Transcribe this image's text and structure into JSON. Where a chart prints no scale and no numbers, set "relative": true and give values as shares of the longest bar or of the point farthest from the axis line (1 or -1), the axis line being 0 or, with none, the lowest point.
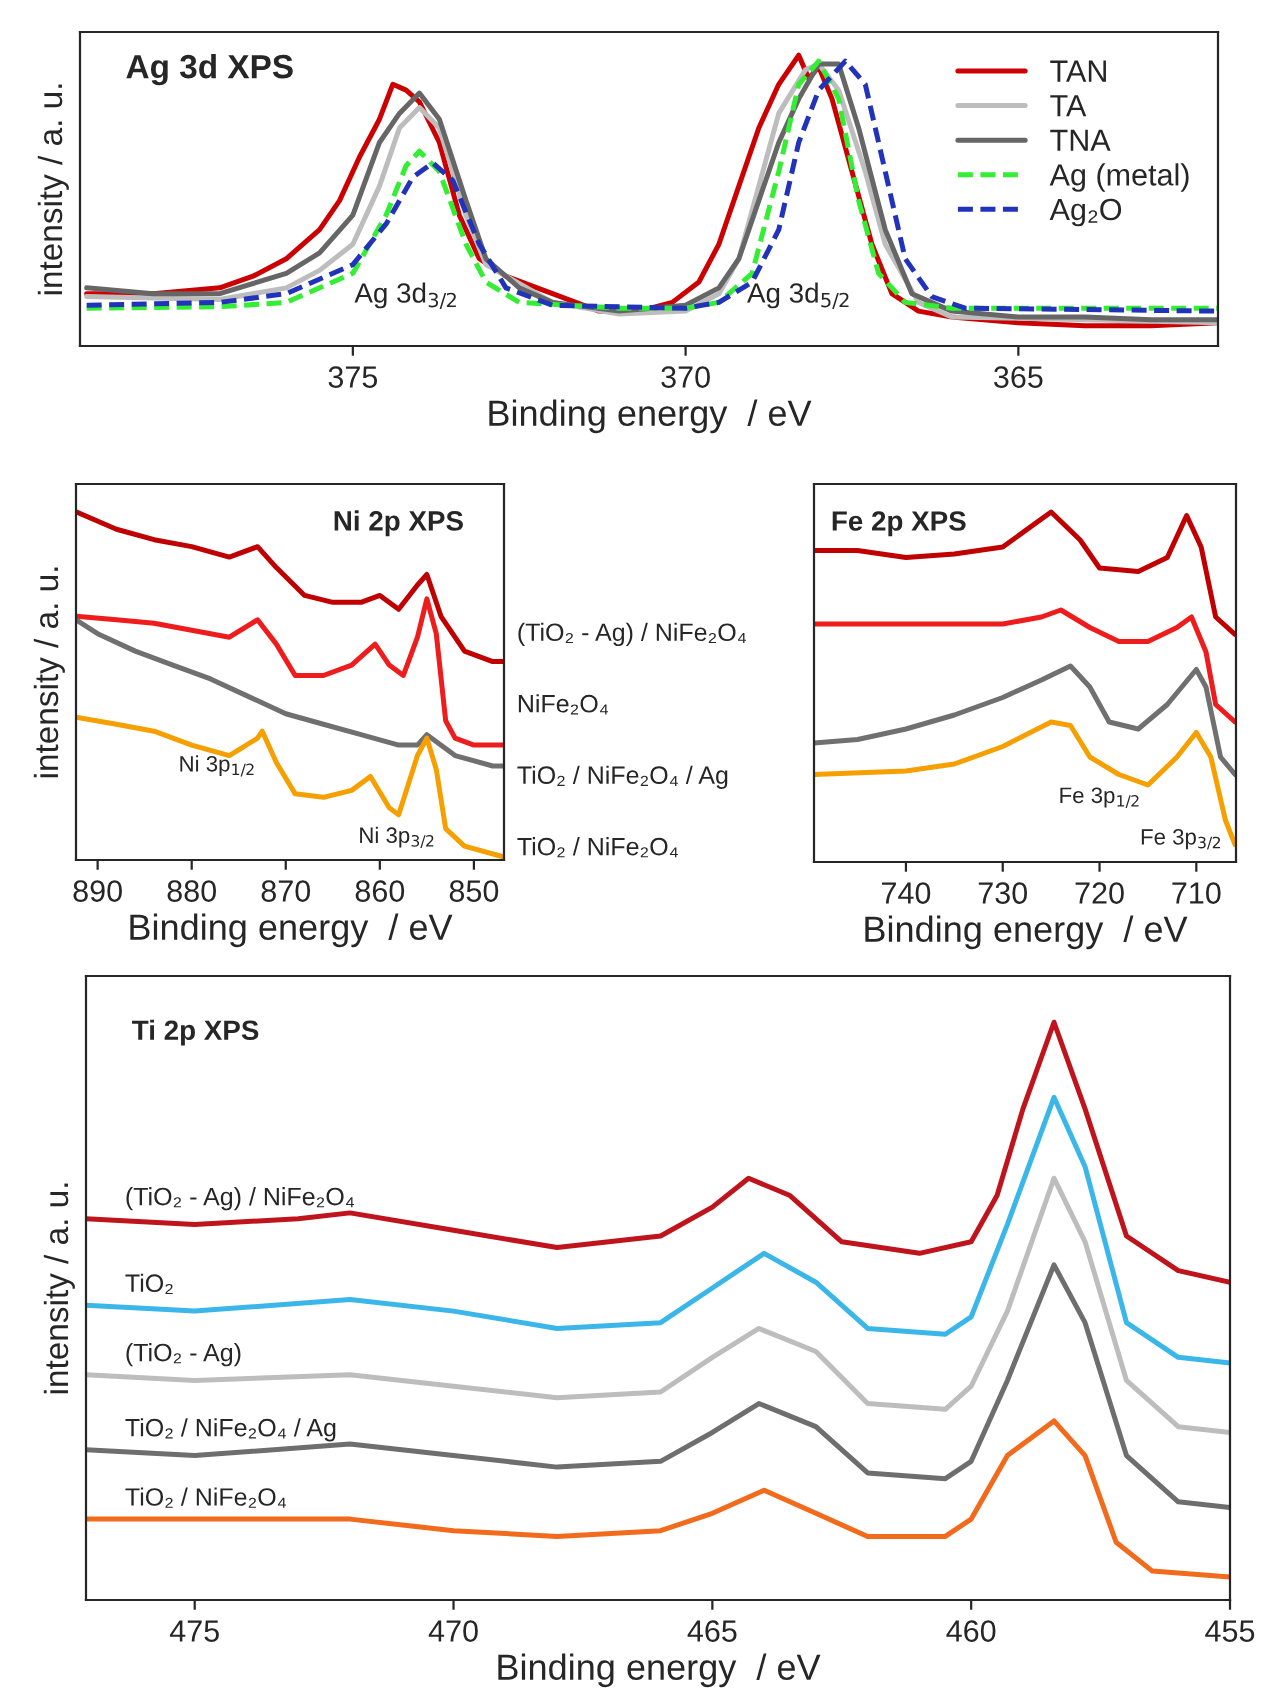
{
  "chart_data": [
    {
      "type": "line",
      "title": "Ag 3d XPS",
      "xlabel": "Binding energy  / eV",
      "ylabel": "intensity / a. u.",
      "relative": true,
      "xlim": [
        379.1,
        362
      ],
      "xticks": [
        375,
        370,
        365
      ],
      "tick_labels": "x",
      "legend": "top right",
      "grid": false,
      "line_style": "solid",
      "annotations": [
        "Ag 3d$_{3/2}$",
        "Ag 3d$_{5/2}$"
      ],
      "series": [
        {
          "name": "TAN",
          "color": "#cc0000",
          "x": [
            379,
            378,
            377,
            376.5,
            376,
            375.5,
            375.2,
            374.9,
            374.6,
            374.4,
            374.2,
            374,
            373.7,
            373.4,
            373.1,
            372.7,
            372,
            371.3,
            370.7,
            370.2,
            369.8,
            369.5,
            369.2,
            368.9,
            368.6,
            368.3,
            368.15,
            368,
            367.8,
            367.5,
            367.2,
            366.9,
            366.5,
            366,
            365,
            364,
            363,
            362
          ],
          "values": [
            0.18,
            0.18,
            0.2,
            0.24,
            0.3,
            0.4,
            0.5,
            0.65,
            0.78,
            0.9,
            0.88,
            0.84,
            0.7,
            0.45,
            0.3,
            0.24,
            0.18,
            0.12,
            0.12,
            0.15,
            0.22,
            0.35,
            0.55,
            0.75,
            0.9,
            1.0,
            0.92,
            0.96,
            0.85,
            0.6,
            0.35,
            0.18,
            0.12,
            0.1,
            0.08,
            0.07,
            0.07,
            0.08
          ]
        },
        {
          "name": "TA",
          "color": "#bdbdbd",
          "x": [
            379,
            377,
            376,
            375.5,
            375,
            374.6,
            374.3,
            374,
            373.7,
            373.3,
            373,
            372,
            371,
            370,
            369.5,
            369.2,
            368.9,
            368.6,
            368.2,
            368,
            367.7,
            367.3,
            367,
            366.5,
            366,
            364,
            362
          ],
          "values": [
            0.17,
            0.16,
            0.2,
            0.26,
            0.35,
            0.55,
            0.75,
            0.82,
            0.75,
            0.45,
            0.28,
            0.15,
            0.11,
            0.12,
            0.18,
            0.3,
            0.55,
            0.8,
            0.95,
            0.97,
            0.88,
            0.6,
            0.35,
            0.15,
            0.1,
            0.09,
            0.08
          ]
        },
        {
          "name": "TNA",
          "color": "#666666",
          "x": [
            379,
            378,
            377,
            376,
            375.5,
            375,
            374.6,
            374.3,
            374,
            373.7,
            373.3,
            373,
            372.5,
            372,
            371,
            370.5,
            370,
            369.5,
            369.2,
            368.9,
            368.6,
            368.3,
            368,
            367.7,
            367.4,
            367,
            366.6,
            366,
            365,
            364,
            363,
            362
          ],
          "values": [
            0.2,
            0.18,
            0.18,
            0.25,
            0.32,
            0.45,
            0.7,
            0.8,
            0.87,
            0.78,
            0.5,
            0.3,
            0.2,
            0.15,
            0.12,
            0.13,
            0.14,
            0.2,
            0.3,
            0.5,
            0.7,
            0.85,
            0.97,
            0.97,
            0.75,
            0.4,
            0.18,
            0.12,
            0.1,
            0.1,
            0.09,
            0.09
          ]
        },
        {
          "name": "Ag (metal)",
          "color": "#33ee33",
          "line_style": "dashed",
          "x": [
            379,
            377,
            376,
            375,
            374.5,
            374.2,
            374,
            373.7,
            373.3,
            373,
            372.5,
            371,
            370,
            369.5,
            369,
            368.6,
            368.3,
            368,
            367.7,
            367.4,
            367.1,
            366.7,
            366,
            362
          ],
          "values": [
            0.13,
            0.135,
            0.15,
            0.25,
            0.45,
            0.62,
            0.67,
            0.6,
            0.35,
            0.22,
            0.15,
            0.13,
            0.13,
            0.15,
            0.25,
            0.6,
            0.9,
            0.98,
            0.85,
            0.5,
            0.25,
            0.15,
            0.13,
            0.13
          ]
        },
        {
          "name": "Ag₂O",
          "color": "#2233bb",
          "line_style": "dashed",
          "x": [
            379,
            377,
            376,
            375,
            374.5,
            374.1,
            373.8,
            373.5,
            373.1,
            372.7,
            372,
            370,
            369.5,
            369,
            368.6,
            368.3,
            368,
            367.6,
            367.3,
            367,
            366.7,
            366.3,
            365.8,
            362
          ],
          "values": [
            0.14,
            0.15,
            0.18,
            0.28,
            0.42,
            0.58,
            0.63,
            0.57,
            0.35,
            0.2,
            0.14,
            0.13,
            0.15,
            0.22,
            0.4,
            0.7,
            0.88,
            0.98,
            0.9,
            0.6,
            0.3,
            0.17,
            0.13,
            0.12
          ]
        }
      ]
    },
    {
      "type": "line",
      "title": "Ni 2p XPS",
      "xlabel": "Binding energy  / eV",
      "ylabel": "intensity / a. u.",
      "relative": true,
      "xlim": [
        892.3,
        846.8
      ],
      "xticks": [
        890,
        880,
        870,
        860,
        850
      ],
      "tick_labels": "x",
      "legend": false,
      "grid": false,
      "line_style": "solid",
      "annotations": [
        "Ni 3p$_{1/2}$",
        "Ni 3p$_{3/2}$"
      ],
      "series": [
        {
          "name": "(TiO₂ - Ag) / NiFe₂O₄",
          "color": "#c00000",
          "x": [
            892.3,
            888,
            884,
            880,
            876,
            873,
            871,
            868,
            865,
            862,
            860,
            858,
            856,
            855,
            853.5,
            851,
            848,
            846.8
          ],
          "values": [
            1.0,
            0.95,
            0.92,
            0.9,
            0.87,
            0.9,
            0.84,
            0.76,
            0.74,
            0.74,
            0.76,
            0.72,
            0.79,
            0.82,
            0.7,
            0.6,
            0.57,
            0.57
          ]
        },
        {
          "name": "NiFe₂O₄",
          "color": "#ee1c1c",
          "x": [
            892.3,
            888,
            884,
            880,
            876,
            873,
            871,
            869,
            866,
            863,
            860.5,
            859,
            857.5,
            856,
            855,
            854,
            853,
            852,
            850,
            846.8
          ],
          "values": [
            0.7,
            0.69,
            0.68,
            0.66,
            0.64,
            0.69,
            0.62,
            0.53,
            0.53,
            0.56,
            0.62,
            0.56,
            0.53,
            0.64,
            0.75,
            0.65,
            0.4,
            0.35,
            0.33,
            0.33
          ]
        },
        {
          "name": "TiO₂ / NiFe₂O₄ / Ag",
          "color": "#707070",
          "x": [
            892.3,
            890,
            886,
            882,
            878,
            874,
            870,
            866,
            862,
            858,
            856,
            855,
            852,
            848,
            846.8
          ],
          "values": [
            0.69,
            0.65,
            0.6,
            0.56,
            0.52,
            0.47,
            0.42,
            0.39,
            0.36,
            0.33,
            0.33,
            0.36,
            0.3,
            0.27,
            0.27
          ]
        },
        {
          "name": "TiO₂ / NiFe₂O₄",
          "color": "#f5a000",
          "x": [
            892.3,
            888,
            884,
            880,
            876,
            873,
            872.5,
            871,
            869,
            866,
            863,
            861,
            859,
            858,
            856,
            855,
            854,
            853,
            851,
            847
          ],
          "values": [
            0.41,
            0.39,
            0.37,
            0.33,
            0.3,
            0.35,
            0.37,
            0.28,
            0.19,
            0.18,
            0.2,
            0.24,
            0.15,
            0.13,
            0.3,
            0.35,
            0.26,
            0.09,
            0.04,
            0.01
          ]
        }
      ]
    },
    {
      "type": "line",
      "title": "Fe 2p XPS",
      "xlabel": "Binding energy  / eV",
      "relative": true,
      "xlim": [
        749.5,
        705.9
      ],
      "xticks": [
        740,
        730,
        720,
        710
      ],
      "tick_labels": "x",
      "legend": false,
      "grid": false,
      "line_style": "solid",
      "annotations": [
        "Fe 3p$_{1/2}$",
        "Fe 3p$_{3/2}$"
      ],
      "series": [
        {
          "color": "#c00000",
          "x": [
            749.5,
            745,
            740,
            735,
            730,
            725,
            722,
            720,
            716,
            713,
            711,
            709.5,
            708,
            706
          ],
          "values": [
            0.89,
            0.89,
            0.87,
            0.88,
            0.9,
            1.0,
            0.92,
            0.84,
            0.83,
            0.87,
            0.99,
            0.9,
            0.7,
            0.65
          ]
        },
        {
          "color": "#ee1c1c",
          "x": [
            749.5,
            740,
            730,
            726,
            724,
            721,
            718,
            715,
            712,
            710.5,
            709,
            708,
            706
          ],
          "values": [
            0.68,
            0.68,
            0.68,
            0.7,
            0.72,
            0.67,
            0.63,
            0.63,
            0.67,
            0.7,
            0.6,
            0.45,
            0.4
          ]
        },
        {
          "color": "#707070",
          "x": [
            749.5,
            745,
            740,
            735,
            730,
            726,
            723,
            721,
            719,
            716,
            713,
            710,
            709,
            707.5,
            706
          ],
          "values": [
            0.34,
            0.35,
            0.38,
            0.42,
            0.47,
            0.52,
            0.56,
            0.5,
            0.4,
            0.38,
            0.45,
            0.55,
            0.5,
            0.3,
            0.25
          ]
        },
        {
          "color": "#f5a000",
          "x": [
            749.5,
            740,
            735,
            730,
            725,
            723,
            721,
            718,
            715,
            712,
            710,
            708.5,
            707,
            706
          ],
          "values": [
            0.25,
            0.26,
            0.28,
            0.33,
            0.4,
            0.39,
            0.3,
            0.25,
            0.22,
            0.3,
            0.37,
            0.3,
            0.12,
            0.05
          ]
        }
      ]
    },
    {
      "type": "line",
      "title": "Ti 2p XPS",
      "xlabel": "Binding energy  / eV",
      "ylabel": "intensity / a. u.",
      "relative": true,
      "xlim": [
        477.1,
        455
      ],
      "xticks": [
        475,
        470,
        465,
        460,
        455
      ],
      "tick_labels": "x",
      "legend": false,
      "grid": false,
      "line_style": "solid",
      "series": [
        {
          "name": "(TiO₂ - Ag) / NiFe₂O₄",
          "color": "#c0141c",
          "x": [
            477.1,
            475,
            473,
            472,
            470,
            468,
            466,
            465,
            464.3,
            463.5,
            462.5,
            461,
            460,
            459.5,
            459,
            458.4,
            457.8,
            457,
            456,
            455
          ],
          "values": [
            0.66,
            0.65,
            0.66,
            0.67,
            0.64,
            0.61,
            0.63,
            0.68,
            0.73,
            0.7,
            0.62,
            0.6,
            0.62,
            0.7,
            0.85,
            1.0,
            0.85,
            0.63,
            0.57,
            0.55
          ]
        },
        {
          "name": "TiO₂",
          "color": "#3bb6e8",
          "x": [
            477.1,
            475,
            472,
            470,
            468,
            466,
            465,
            464,
            463,
            462,
            460.5,
            460,
            459.3,
            458.4,
            457.8,
            457,
            456,
            455
          ],
          "values": [
            0.51,
            0.5,
            0.52,
            0.5,
            0.47,
            0.48,
            0.54,
            0.6,
            0.55,
            0.47,
            0.46,
            0.49,
            0.65,
            0.87,
            0.75,
            0.48,
            0.42,
            0.41
          ]
        },
        {
          "name": "(TiO₂ - Ag)",
          "color": "#bdbdbd",
          "x": [
            477.1,
            475,
            472,
            470,
            468,
            466,
            465,
            464.1,
            463,
            462,
            460.5,
            460,
            459.3,
            458.4,
            457.8,
            457,
            456,
            455
          ],
          "values": [
            0.39,
            0.38,
            0.39,
            0.37,
            0.35,
            0.36,
            0.42,
            0.47,
            0.43,
            0.34,
            0.33,
            0.37,
            0.5,
            0.73,
            0.62,
            0.38,
            0.3,
            0.29
          ]
        },
        {
          "name": "TiO₂ / NiFe₂O₄ / Ag",
          "color": "#6e6e6e",
          "x": [
            477.1,
            475,
            472,
            470,
            468,
            466,
            465,
            464.1,
            463,
            462,
            460.5,
            460,
            459.3,
            458.4,
            457.8,
            457,
            456,
            455
          ],
          "values": [
            0.26,
            0.25,
            0.27,
            0.25,
            0.23,
            0.24,
            0.29,
            0.34,
            0.3,
            0.22,
            0.21,
            0.24,
            0.38,
            0.58,
            0.48,
            0.25,
            0.17,
            0.16
          ]
        },
        {
          "name": "TiO₂ / NiFe₂O₄",
          "color": "#f26a1b",
          "x": [
            477.1,
            475,
            472,
            470,
            468,
            466,
            465,
            464,
            463,
            462,
            460.5,
            460,
            459.3,
            458.4,
            457.8,
            457.2,
            456.5,
            455
          ],
          "values": [
            0.14,
            0.14,
            0.14,
            0.12,
            0.11,
            0.12,
            0.15,
            0.19,
            0.15,
            0.11,
            0.11,
            0.14,
            0.25,
            0.31,
            0.25,
            0.1,
            0.05,
            0.04
          ]
        }
      ]
    }
  ]
}
